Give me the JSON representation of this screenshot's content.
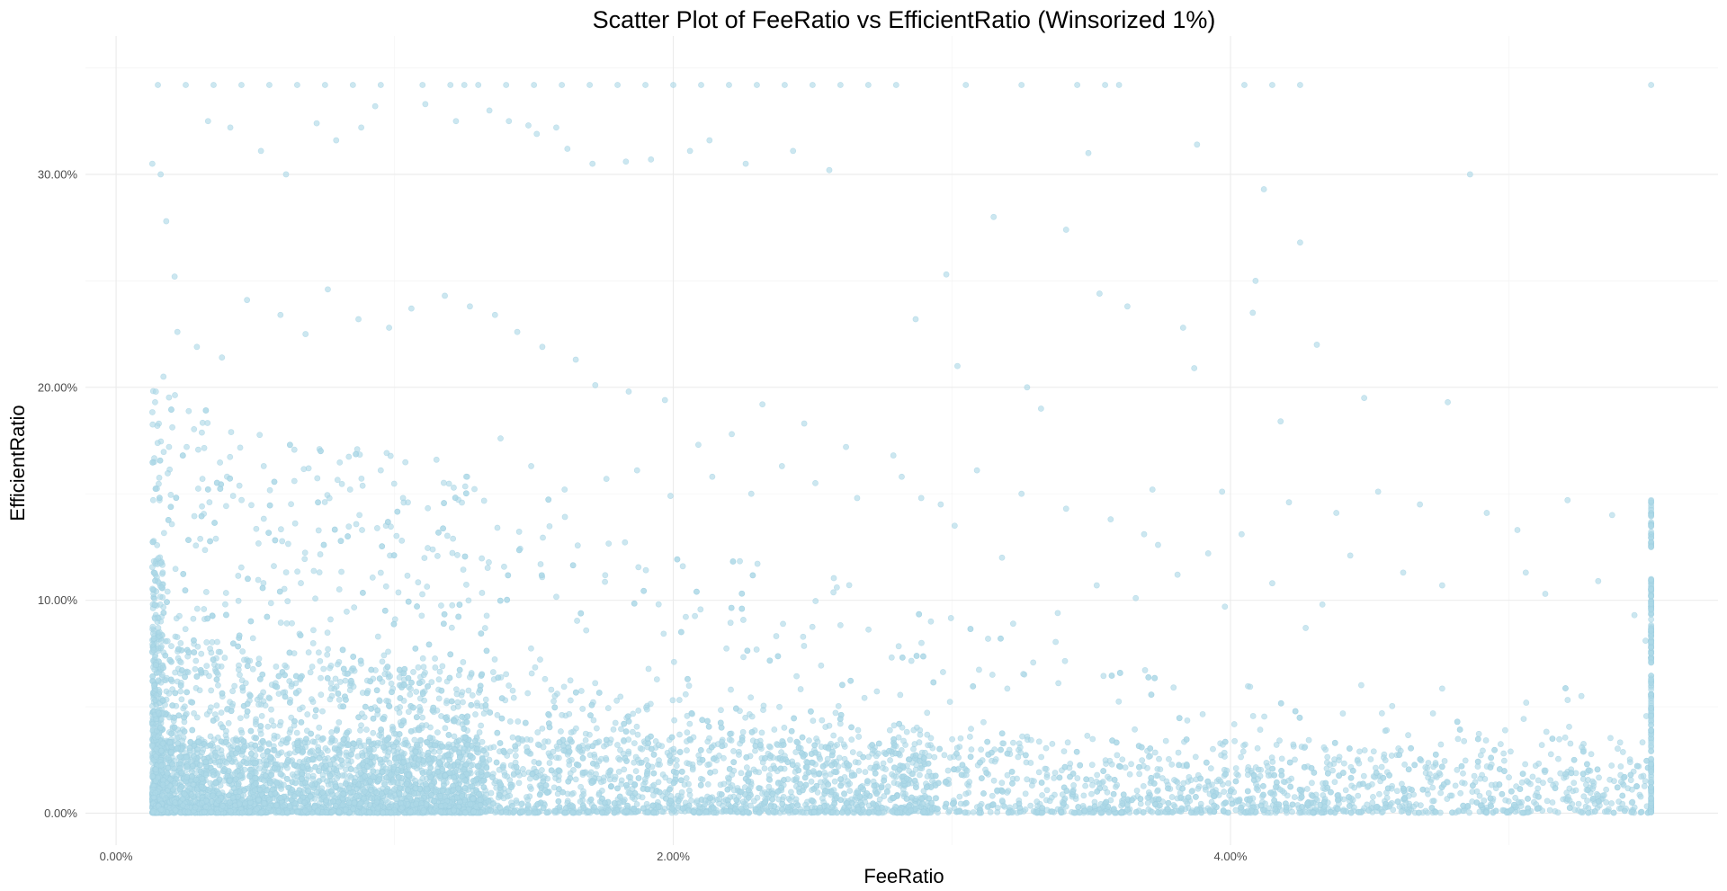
{
  "chart_data": {
    "type": "scatter",
    "title": "Scatter Plot of FeeRatio vs EfficientRatio (Winsorized 1%)",
    "xlabel": "FeeRatio",
    "ylabel": "EfficientRatio",
    "x_ticks": [
      {
        "value": 0.0,
        "label": "0.00%"
      },
      {
        "value": 0.02,
        "label": "2.00%"
      },
      {
        "value": 0.04,
        "label": "4.00%"
      }
    ],
    "y_ticks": [
      {
        "value": 0.0,
        "label": "0.00%"
      },
      {
        "value": 0.1,
        "label": "10.00%"
      },
      {
        "value": 0.2,
        "label": "20.00%"
      },
      {
        "value": 0.3,
        "label": "30.00%"
      }
    ],
    "xlim": [
      -0.0011,
      0.0575
    ],
    "ylim": [
      -0.015,
      0.365
    ],
    "grid": true,
    "legend": "none",
    "point_color": "#add8e6",
    "point_opacity": 0.6,
    "x_min": 0.0013,
    "x_max": 0.0551,
    "y_min": 0.0002,
    "y_max": 0.342,
    "points": [
      [
        0.0015,
        0.342
      ],
      [
        0.0025,
        0.342
      ],
      [
        0.0035,
        0.342
      ],
      [
        0.0045,
        0.342
      ],
      [
        0.0055,
        0.342
      ],
      [
        0.0065,
        0.342
      ],
      [
        0.0075,
        0.342
      ],
      [
        0.0085,
        0.342
      ],
      [
        0.0095,
        0.342
      ],
      [
        0.011,
        0.342
      ],
      [
        0.012,
        0.342
      ],
      [
        0.0125,
        0.342
      ],
      [
        0.013,
        0.342
      ],
      [
        0.014,
        0.342
      ],
      [
        0.015,
        0.342
      ],
      [
        0.016,
        0.342
      ],
      [
        0.017,
        0.342
      ],
      [
        0.018,
        0.342
      ],
      [
        0.019,
        0.342
      ],
      [
        0.02,
        0.342
      ],
      [
        0.021,
        0.342
      ],
      [
        0.022,
        0.342
      ],
      [
        0.023,
        0.342
      ],
      [
        0.024,
        0.342
      ],
      [
        0.025,
        0.342
      ],
      [
        0.026,
        0.342
      ],
      [
        0.027,
        0.342
      ],
      [
        0.028,
        0.342
      ],
      [
        0.0305,
        0.342
      ],
      [
        0.0325,
        0.342
      ],
      [
        0.0345,
        0.342
      ],
      [
        0.0355,
        0.342
      ],
      [
        0.036,
        0.342
      ],
      [
        0.0405,
        0.342
      ],
      [
        0.0415,
        0.342
      ],
      [
        0.0425,
        0.342
      ],
      [
        0.0551,
        0.342
      ],
      [
        0.0013,
        0.305
      ],
      [
        0.0016,
        0.3
      ],
      [
        0.0018,
        0.278
      ],
      [
        0.0021,
        0.252
      ],
      [
        0.0033,
        0.325
      ],
      [
        0.0041,
        0.322
      ],
      [
        0.0052,
        0.311
      ],
      [
        0.0061,
        0.3
      ],
      [
        0.0072,
        0.324
      ],
      [
        0.0079,
        0.316
      ],
      [
        0.0088,
        0.322
      ],
      [
        0.0093,
        0.332
      ],
      [
        0.0111,
        0.333
      ],
      [
        0.0122,
        0.325
      ],
      [
        0.0134,
        0.33
      ],
      [
        0.0141,
        0.325
      ],
      [
        0.0148,
        0.323
      ],
      [
        0.0151,
        0.319
      ],
      [
        0.0158,
        0.322
      ],
      [
        0.0162,
        0.312
      ],
      [
        0.0171,
        0.305
      ],
      [
        0.0183,
        0.306
      ],
      [
        0.0192,
        0.307
      ],
      [
        0.0206,
        0.311
      ],
      [
        0.0213,
        0.316
      ],
      [
        0.0226,
        0.305
      ],
      [
        0.0243,
        0.311
      ],
      [
        0.0256,
        0.302
      ],
      [
        0.0388,
        0.314
      ],
      [
        0.0349,
        0.31
      ],
      [
        0.0412,
        0.293
      ],
      [
        0.0425,
        0.268
      ],
      [
        0.0486,
        0.3
      ],
      [
        0.0341,
        0.274
      ],
      [
        0.0315,
        0.28
      ],
      [
        0.0298,
        0.253
      ],
      [
        0.0287,
        0.232
      ],
      [
        0.0353,
        0.244
      ],
      [
        0.0383,
        0.228
      ],
      [
        0.0387,
        0.209
      ],
      [
        0.0431,
        0.22
      ],
      [
        0.0448,
        0.195
      ],
      [
        0.0478,
        0.193
      ],
      [
        0.0418,
        0.184
      ],
      [
        0.0408,
        0.235
      ],
      [
        0.0409,
        0.25
      ],
      [
        0.0363,
        0.238
      ],
      [
        0.0327,
        0.2
      ],
      [
        0.0302,
        0.21
      ],
      [
        0.0332,
        0.19
      ],
      [
        0.0372,
        0.152
      ],
      [
        0.0397,
        0.151
      ],
      [
        0.0421,
        0.146
      ],
      [
        0.0438,
        0.141
      ],
      [
        0.0453,
        0.151
      ],
      [
        0.0468,
        0.145
      ],
      [
        0.0492,
        0.141
      ],
      [
        0.0503,
        0.133
      ],
      [
        0.0521,
        0.147
      ],
      [
        0.0537,
        0.14
      ],
      [
        0.0462,
        0.113
      ],
      [
        0.0476,
        0.107
      ],
      [
        0.0506,
        0.113
      ],
      [
        0.0513,
        0.103
      ],
      [
        0.0532,
        0.109
      ],
      [
        0.0545,
        0.093
      ],
      [
        0.0549,
        0.081
      ],
      [
        0.0443,
        0.121
      ],
      [
        0.0433,
        0.098
      ],
      [
        0.0427,
        0.087
      ],
      [
        0.0415,
        0.108
      ],
      [
        0.0398,
        0.097
      ],
      [
        0.0381,
        0.112
      ],
      [
        0.0366,
        0.101
      ],
      [
        0.0352,
        0.107
      ],
      [
        0.0338,
        0.094
      ],
      [
        0.0322,
        0.089
      ],
      [
        0.0318,
        0.12
      ],
      [
        0.0301,
        0.135
      ],
      [
        0.0289,
        0.148
      ],
      [
        0.0279,
        0.168
      ],
      [
        0.0262,
        0.172
      ],
      [
        0.0247,
        0.183
      ],
      [
        0.0232,
        0.192
      ],
      [
        0.0221,
        0.178
      ],
      [
        0.0209,
        0.173
      ],
      [
        0.0197,
        0.194
      ],
      [
        0.0184,
        0.198
      ],
      [
        0.0172,
        0.201
      ],
      [
        0.0165,
        0.213
      ],
      [
        0.0153,
        0.219
      ],
      [
        0.0144,
        0.226
      ],
      [
        0.0136,
        0.234
      ],
      [
        0.0127,
        0.238
      ],
      [
        0.0118,
        0.243
      ],
      [
        0.0106,
        0.237
      ],
      [
        0.0098,
        0.228
      ],
      [
        0.0087,
        0.232
      ],
      [
        0.0076,
        0.246
      ],
      [
        0.0068,
        0.225
      ],
      [
        0.0059,
        0.234
      ],
      [
        0.0047,
        0.241
      ],
      [
        0.0038,
        0.214
      ],
      [
        0.0029,
        0.219
      ],
      [
        0.0022,
        0.226
      ],
      [
        0.0017,
        0.205
      ],
      [
        0.0014,
        0.193
      ],
      [
        0.0019,
        0.172
      ],
      [
        0.0024,
        0.168
      ],
      [
        0.0031,
        0.157
      ],
      [
        0.0042,
        0.149
      ],
      [
        0.0053,
        0.163
      ],
      [
        0.0064,
        0.156
      ],
      [
        0.0073,
        0.171
      ],
      [
        0.0084,
        0.152
      ],
      [
        0.0095,
        0.161
      ],
      [
        0.0103,
        0.148
      ],
      [
        0.0115,
        0.166
      ],
      [
        0.0126,
        0.158
      ],
      [
        0.0138,
        0.176
      ],
      [
        0.0149,
        0.163
      ],
      [
        0.0161,
        0.152
      ],
      [
        0.0176,
        0.157
      ],
      [
        0.0187,
        0.161
      ],
      [
        0.0199,
        0.149
      ],
      [
        0.0214,
        0.158
      ],
      [
        0.0228,
        0.15
      ],
      [
        0.0239,
        0.163
      ],
      [
        0.0251,
        0.155
      ],
      [
        0.0266,
        0.148
      ],
      [
        0.0282,
        0.158
      ],
      [
        0.0296,
        0.145
      ],
      [
        0.0309,
        0.161
      ],
      [
        0.0325,
        0.15
      ],
      [
        0.0341,
        0.143
      ],
      [
        0.0357,
        0.138
      ],
      [
        0.0369,
        0.131
      ],
      [
        0.0374,
        0.126
      ],
      [
        0.0392,
        0.122
      ],
      [
        0.0404,
        0.131
      ],
      [
        0.0551,
        0.147
      ],
      [
        0.0551,
        0.141
      ],
      [
        0.0551,
        0.136
      ],
      [
        0.0551,
        0.131
      ],
      [
        0.0551,
        0.125
      ],
      [
        0.0551,
        0.108
      ],
      [
        0.0551,
        0.103
      ],
      [
        0.0551,
        0.097
      ],
      [
        0.0551,
        0.091
      ],
      [
        0.0551,
        0.086
      ],
      [
        0.0551,
        0.081
      ],
      [
        0.0551,
        0.075
      ],
      [
        0.0551,
        0.062
      ],
      [
        0.0551,
        0.055
      ],
      [
        0.0551,
        0.047
      ],
      [
        0.0551,
        0.038
      ],
      [
        0.0551,
        0.031
      ],
      [
        0.0551,
        0.024
      ],
      [
        0.0551,
        0.018
      ],
      [
        0.0551,
        0.012
      ],
      [
        0.0551,
        0.006
      ],
      [
        0.0551,
        0.003
      ]
    ]
  }
}
